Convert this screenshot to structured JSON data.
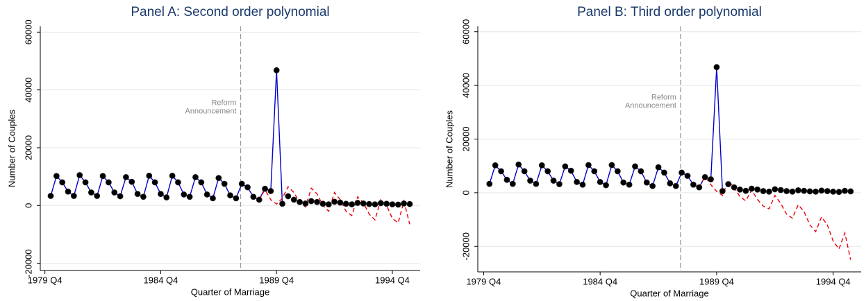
{
  "chart_data": [
    {
      "type": "line",
      "title": "Panel A: Second order polynomial",
      "xlabel": "Quarter of Marriage",
      "ylabel": "Number of Couples",
      "xlim": [
        -0.8,
        64.8
      ],
      "ylim": [
        -22500,
        62000
      ],
      "xticks": [
        {
          "value": 0,
          "label": "1979 Q4"
        },
        {
          "value": 20,
          "label": "1984 Q4"
        },
        {
          "value": 40,
          "label": "1989 Q4"
        },
        {
          "value": 60,
          "label": "1994 Q4"
        }
      ],
      "yticks": [
        -20000,
        0,
        20000,
        40000,
        60000
      ],
      "grid": true,
      "vline": 33.8,
      "annotation": [
        "Reform",
        "Announcement"
      ],
      "x": [
        1,
        2,
        3,
        4,
        5,
        6,
        7,
        8,
        9,
        10,
        11,
        12,
        13,
        14,
        15,
        16,
        17,
        18,
        19,
        20,
        21,
        22,
        23,
        24,
        25,
        26,
        27,
        28,
        29,
        30,
        31,
        32,
        33,
        34,
        35,
        36,
        37,
        38,
        39,
        40,
        41,
        42,
        43,
        44,
        45,
        46,
        47,
        48,
        49,
        50,
        51,
        52,
        53,
        54,
        55,
        56,
        57,
        58,
        59,
        60,
        61,
        62,
        63
      ],
      "series": [
        {
          "color": "#0000cc",
          "style": "solid",
          "values": [
            3300,
            10200,
            8000,
            4800,
            3300,
            10500,
            8000,
            4500,
            3300,
            10200,
            8000,
            4500,
            3200,
            9800,
            8200,
            4000,
            3000,
            10300,
            8000,
            4000,
            2800,
            10300,
            8000,
            3800,
            3000,
            9800,
            8000,
            3800,
            2500,
            9500,
            7500,
            3500,
            2500,
            7500,
            6300,
            3000,
            2000,
            6000,
            5000,
            46800,
            600,
            null,
            null,
            null,
            null,
            null,
            null,
            null,
            null,
            null,
            null,
            null,
            null,
            null,
            null,
            null,
            null,
            null,
            null,
            null,
            null,
            null,
            null
          ]
        },
        {
          "color": "#e8000b",
          "style": "dashed",
          "values": [
            null,
            null,
            null,
            null,
            null,
            null,
            null,
            null,
            null,
            null,
            null,
            null,
            null,
            null,
            null,
            null,
            null,
            null,
            null,
            null,
            null,
            null,
            null,
            null,
            null,
            null,
            null,
            null,
            null,
            null,
            null,
            null,
            null,
            null,
            null,
            null,
            2000,
            5500,
            2000,
            500,
            2500,
            6500,
            4500,
            1000,
            -500,
            6000,
            4000,
            0,
            -2000,
            4500,
            2000,
            -2000,
            -3500,
            3000,
            1000,
            -3000,
            -5000,
            2000,
            0,
            -4500,
            -6000,
            1500,
            -6500
          ]
        },
        {
          "color": "#000000",
          "style": "markers",
          "values": [
            3300,
            10200,
            8000,
            4800,
            3300,
            10500,
            8000,
            4500,
            3300,
            10200,
            8000,
            4500,
            3200,
            9800,
            8200,
            4000,
            3000,
            10300,
            8000,
            4000,
            2800,
            10300,
            8000,
            3800,
            3000,
            9800,
            8000,
            3800,
            2500,
            9500,
            7500,
            3500,
            2500,
            7500,
            6300,
            3000,
            2000,
            5800,
            5000,
            46800,
            600,
            3200,
            2000,
            1200,
            700,
            1500,
            1200,
            600,
            400,
            1300,
            1000,
            600,
            400,
            900,
            700,
            500,
            400,
            800,
            600,
            400,
            300,
            700,
            500
          ]
        }
      ]
    },
    {
      "type": "line",
      "title": "Panel B: Third order polynomial",
      "xlabel": "Quarter of Marriage",
      "ylabel": "Number of Couples",
      "xlim": [
        -1,
        64.8
      ],
      "ylim": [
        -29500,
        62000
      ],
      "xticks": [
        {
          "value": 0,
          "label": "1979 Q4"
        },
        {
          "value": 20,
          "label": "1984 Q4"
        },
        {
          "value": 40,
          "label": "1989 Q4"
        },
        {
          "value": 60,
          "label": "1994 Q4"
        }
      ],
      "yticks": [
        -20000,
        0,
        20000,
        40000,
        60000
      ],
      "grid": true,
      "vline": 33.8,
      "annotation": [
        "Reform",
        "Announcement"
      ],
      "x": [
        1,
        2,
        3,
        4,
        5,
        6,
        7,
        8,
        9,
        10,
        11,
        12,
        13,
        14,
        15,
        16,
        17,
        18,
        19,
        20,
        21,
        22,
        23,
        24,
        25,
        26,
        27,
        28,
        29,
        30,
        31,
        32,
        33,
        34,
        35,
        36,
        37,
        38,
        39,
        40,
        41,
        42,
        43,
        44,
        45,
        46,
        47,
        48,
        49,
        50,
        51,
        52,
        53,
        54,
        55,
        56,
        57,
        58,
        59,
        60,
        61,
        62,
        63
      ],
      "series": [
        {
          "color": "#0000cc",
          "style": "solid",
          "values": [
            3300,
            10200,
            8000,
            4800,
            3300,
            10500,
            8000,
            4500,
            3300,
            10200,
            8000,
            4500,
            3200,
            9800,
            8200,
            4000,
            3000,
            10300,
            8000,
            4000,
            2800,
            10300,
            8000,
            3800,
            3000,
            9800,
            8000,
            3800,
            2500,
            9500,
            7500,
            3500,
            2500,
            7500,
            6300,
            3000,
            2000,
            6000,
            5000,
            46800,
            600,
            null,
            null,
            null,
            null,
            null,
            null,
            null,
            null,
            null,
            null,
            null,
            null,
            null,
            null,
            null,
            null,
            null,
            null,
            null,
            null,
            null,
            null
          ]
        },
        {
          "color": "#e8000b",
          "style": "dashed",
          "values": [
            null,
            null,
            null,
            null,
            null,
            null,
            null,
            null,
            null,
            null,
            null,
            null,
            null,
            null,
            null,
            null,
            null,
            null,
            null,
            null,
            null,
            null,
            null,
            null,
            null,
            null,
            null,
            null,
            null,
            null,
            null,
            null,
            null,
            null,
            null,
            null,
            2000,
            6000,
            3000,
            500,
            -1000,
            4500,
            2000,
            -1500,
            -3000,
            1000,
            -2500,
            -5000,
            -6000,
            -1000,
            -4000,
            -8000,
            -9500,
            -4500,
            -7000,
            -12000,
            -14500,
            -9000,
            -12000,
            -18000,
            -21000,
            -15000,
            -25000
          ]
        },
        {
          "color": "#000000",
          "style": "markers",
          "values": [
            3300,
            10200,
            8000,
            4800,
            3300,
            10500,
            8000,
            4500,
            3300,
            10200,
            8000,
            4500,
            3200,
            9800,
            8200,
            4000,
            3000,
            10300,
            8000,
            4000,
            2800,
            10300,
            8000,
            3800,
            3000,
            9800,
            8000,
            3800,
            2500,
            9500,
            7500,
            3500,
            2500,
            7500,
            6300,
            3000,
            2000,
            5800,
            5000,
            46800,
            600,
            3200,
            2000,
            1200,
            700,
            1500,
            1200,
            600,
            400,
            1300,
            1000,
            600,
            400,
            900,
            700,
            500,
            400,
            800,
            600,
            400,
            300,
            700,
            500
          ]
        }
      ]
    }
  ]
}
